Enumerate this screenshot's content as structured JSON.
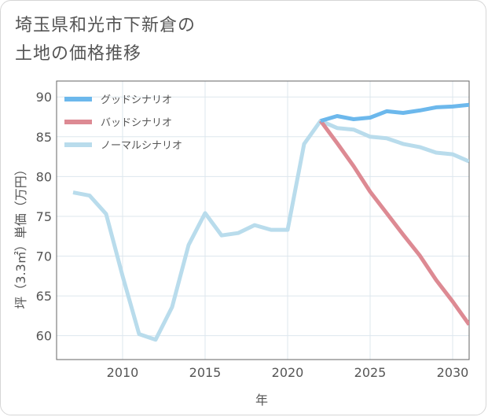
{
  "chart_data": {
    "type": "line",
    "title_lines": [
      "埼玉県和光市下新倉の",
      "土地の価格推移"
    ],
    "xlabel": "年",
    "ylabel": "坪（3.3㎡）単価（万円）",
    "xlim": [
      2006,
      2031
    ],
    "ylim": [
      57,
      92
    ],
    "xticks": [
      2010,
      2015,
      2020,
      2025,
      2030
    ],
    "yticks": [
      60,
      65,
      70,
      75,
      80,
      85,
      90
    ],
    "legend_position": "top-left",
    "grid": true,
    "series": [
      {
        "name": "グッドシナリオ",
        "color": "#6cb8ec",
        "x": [
          2022,
          2023,
          2024,
          2025,
          2026,
          2027,
          2028,
          2029,
          2030,
          2031
        ],
        "y": [
          87.0,
          87.6,
          87.2,
          87.4,
          88.2,
          88.0,
          88.3,
          88.7,
          88.8,
          89.0
        ]
      },
      {
        "name": "バッドシナリオ",
        "color": "#dd8a93",
        "x": [
          2022,
          2023,
          2024,
          2025,
          2026,
          2027,
          2028,
          2029,
          2030,
          2031
        ],
        "y": [
          87.0,
          84.2,
          81.3,
          78.1,
          75.4,
          72.7,
          70.1,
          67.0,
          64.3,
          61.4
        ]
      },
      {
        "name": "ノーマルシナリオ",
        "color": "#b9dcec",
        "x": [
          2007,
          2008,
          2009,
          2010,
          2011,
          2012,
          2013,
          2014,
          2015,
          2016,
          2017,
          2018,
          2019,
          2020,
          2021,
          2022,
          2023,
          2024,
          2025,
          2026,
          2027,
          2028,
          2029,
          2030,
          2031
        ],
        "y": [
          78.0,
          77.6,
          75.3,
          67.5,
          60.2,
          59.5,
          63.6,
          71.4,
          75.4,
          72.6,
          72.9,
          73.9,
          73.3,
          73.3,
          84.1,
          87.0,
          86.1,
          85.9,
          85.0,
          84.8,
          84.1,
          83.7,
          83.0,
          82.8,
          81.9
        ]
      }
    ]
  }
}
